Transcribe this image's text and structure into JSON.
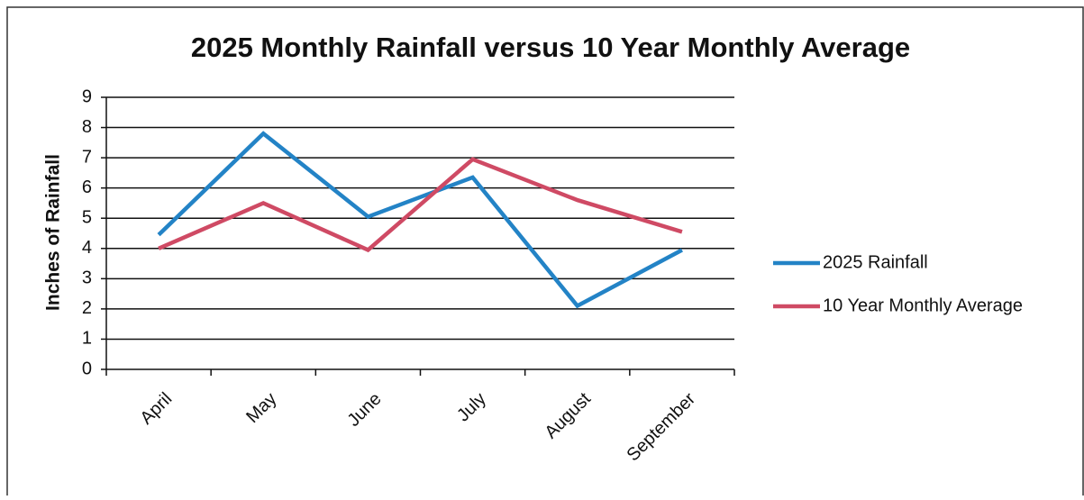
{
  "chart_data": {
    "type": "line",
    "title": "2025 Monthly Rainfall versus 10 Year Monthly Average",
    "y_label": "Inches of Rainfall",
    "categories": [
      "April",
      "May",
      "June",
      "July",
      "August",
      "September"
    ],
    "series": [
      {
        "name": "2025 Rainfall",
        "color": "#2383c6",
        "values": [
          4.45,
          7.8,
          5.05,
          6.35,
          2.1,
          3.95
        ]
      },
      {
        "name": "10 Year Monthly Average",
        "color": "#cf4a64",
        "values": [
          4.0,
          5.5,
          3.95,
          6.95,
          5.6,
          4.55
        ]
      }
    ],
    "ylim": [
      0,
      9
    ],
    "yticks": [
      0,
      1,
      2,
      3,
      4,
      5,
      6,
      7,
      8,
      9
    ],
    "grid": true,
    "legend": "right"
  }
}
